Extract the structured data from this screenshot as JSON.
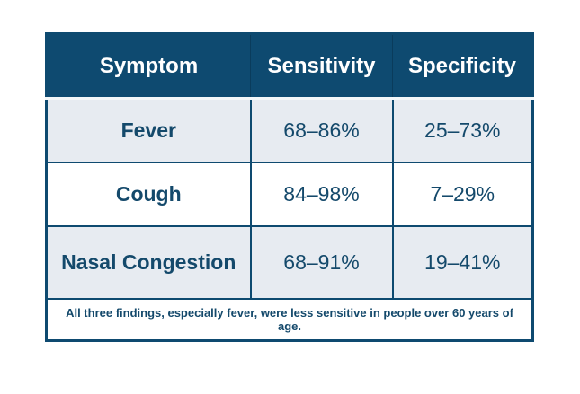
{
  "theme": {
    "navy": "#0e4a70",
    "text_navy": "#14496b",
    "row_alt_bg": "#e7ebf1",
    "row_bg": "#ffffff",
    "header_text": "#ffffff",
    "page_bg": "#ffffff",
    "header_separator": "#f3f7f9",
    "header_divider": "#0a3c5c"
  },
  "table": {
    "headers": [
      "Symptom",
      "Sensitivity",
      "Specificity"
    ],
    "rows": [
      {
        "symptom": "Fever",
        "sensitivity": "68–86%",
        "specificity": "25–73%"
      },
      {
        "symptom": "Cough",
        "sensitivity": "84–98%",
        "specificity": "7–29%"
      },
      {
        "symptom": "Nasal Congestion",
        "sensitivity": "68–91%",
        "specificity": "19–41%"
      }
    ],
    "footnote": "All three findings, especially fever, were less sensitive in people over 60 years of age."
  },
  "chart_data": {
    "type": "table",
    "columns": [
      "Symptom",
      "Sensitivity",
      "Specificity"
    ],
    "rows": [
      [
        "Fever",
        "68–86%",
        "25–73%"
      ],
      [
        "Cough",
        "84–98%",
        "7–29%"
      ],
      [
        "Nasal Congestion",
        "68–91%",
        "19–41%"
      ]
    ],
    "footnote": "All three findings, especially fever, were less sensitive in people over 60 years of age.",
    "layout_hints": {
      "header_background": "#0e4a70",
      "alternating_row_backgrounds": [
        "#e7ebf1",
        "#ffffff",
        "#e7ebf1"
      ],
      "grid": true
    }
  }
}
